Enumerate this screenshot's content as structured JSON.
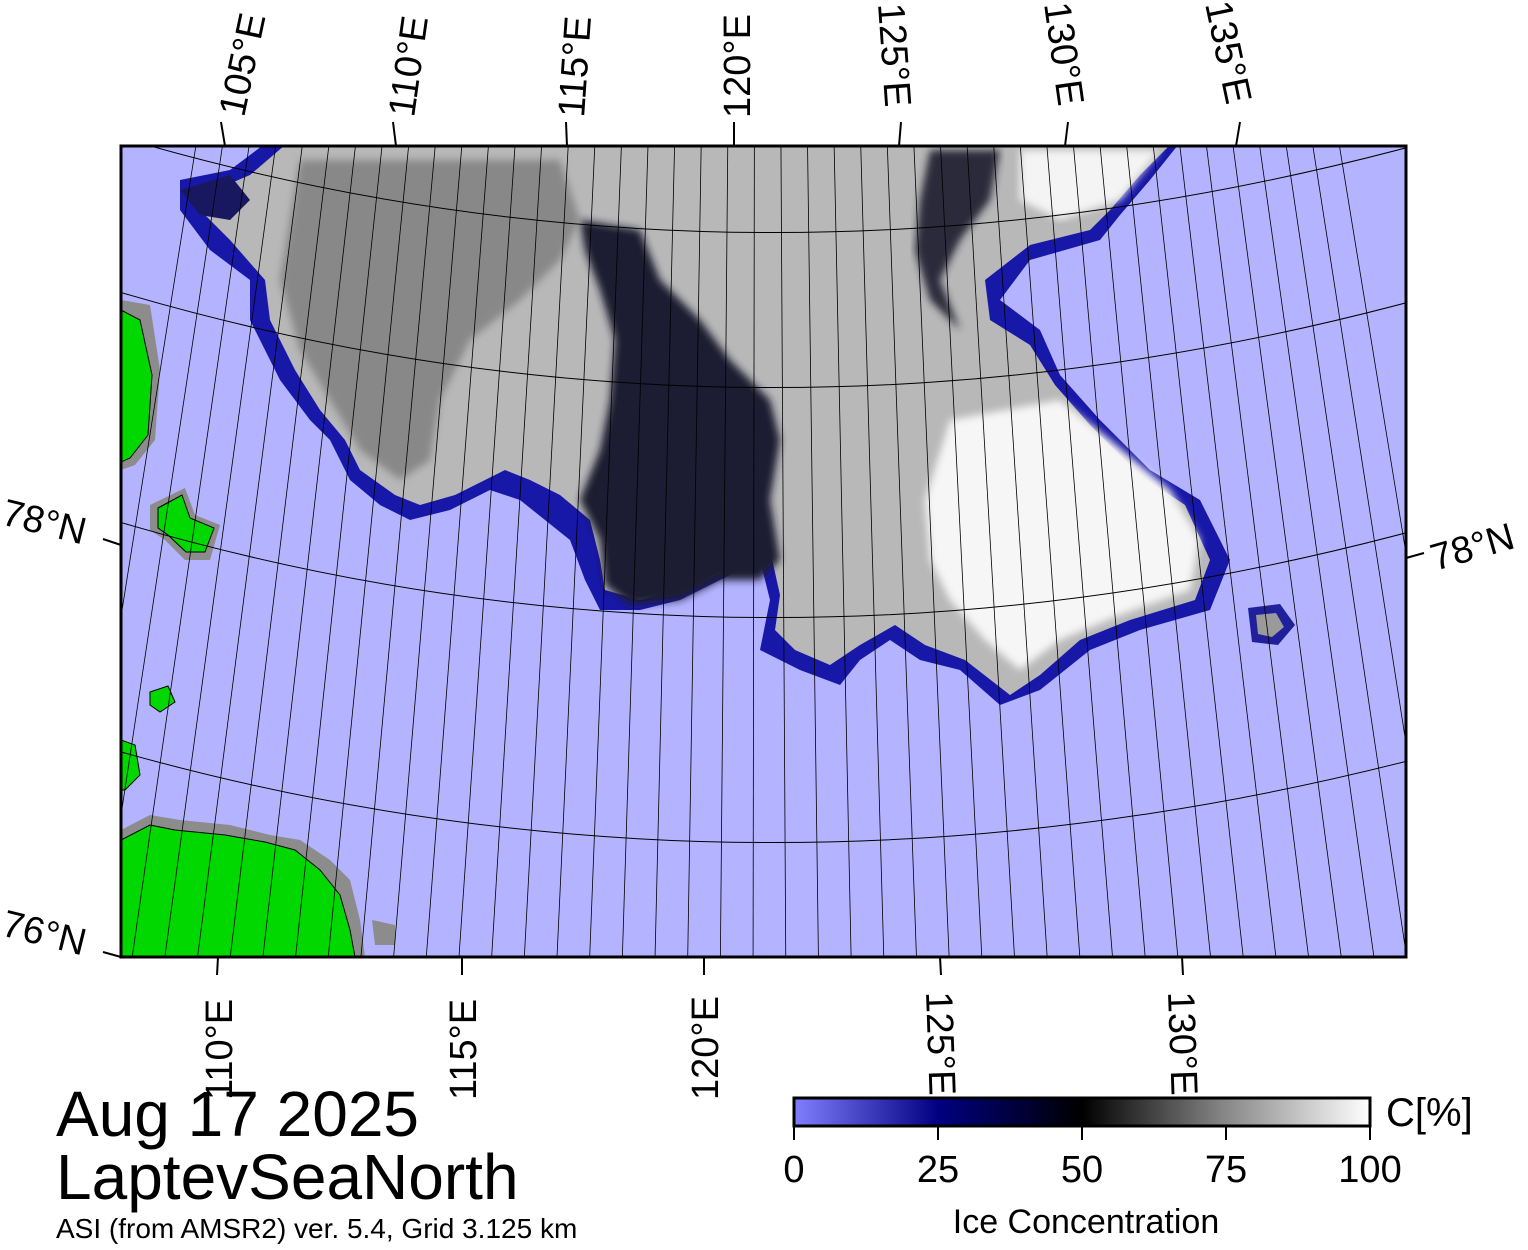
{
  "map": {
    "title_date": "Aug 17 2025",
    "region": "LaptevSeaNorth",
    "source": "ASI (from AMSR2) ver. 5.4,  Grid 3.125 km",
    "top_lon_labels": [
      "105°E",
      "110°E",
      "115°E",
      "120°E",
      "125°E",
      "130°E",
      "135°E"
    ],
    "bottom_lon_labels": [
      "110°E",
      "115°E",
      "120°E",
      "125°E",
      "130°E"
    ],
    "left_lat_labels": [
      "78°N",
      "76°N"
    ],
    "right_lat_labels": [
      "78°N"
    ],
    "colors": {
      "water": "#b3b3ff",
      "land": "#00d800",
      "coast_mask": "#8c8c8c",
      "ice_high": "#ffffff",
      "ice_mid": "#000000",
      "ice_low": "#000060"
    }
  },
  "colorbar": {
    "title": "Ice Concentration",
    "unit": "C[%]",
    "ticks": [
      "0",
      "25",
      "50",
      "75",
      "100"
    ],
    "gradient_colors": [
      "#8080ff",
      "#000080",
      "#000000",
      "#808080",
      "#ffffff"
    ]
  }
}
